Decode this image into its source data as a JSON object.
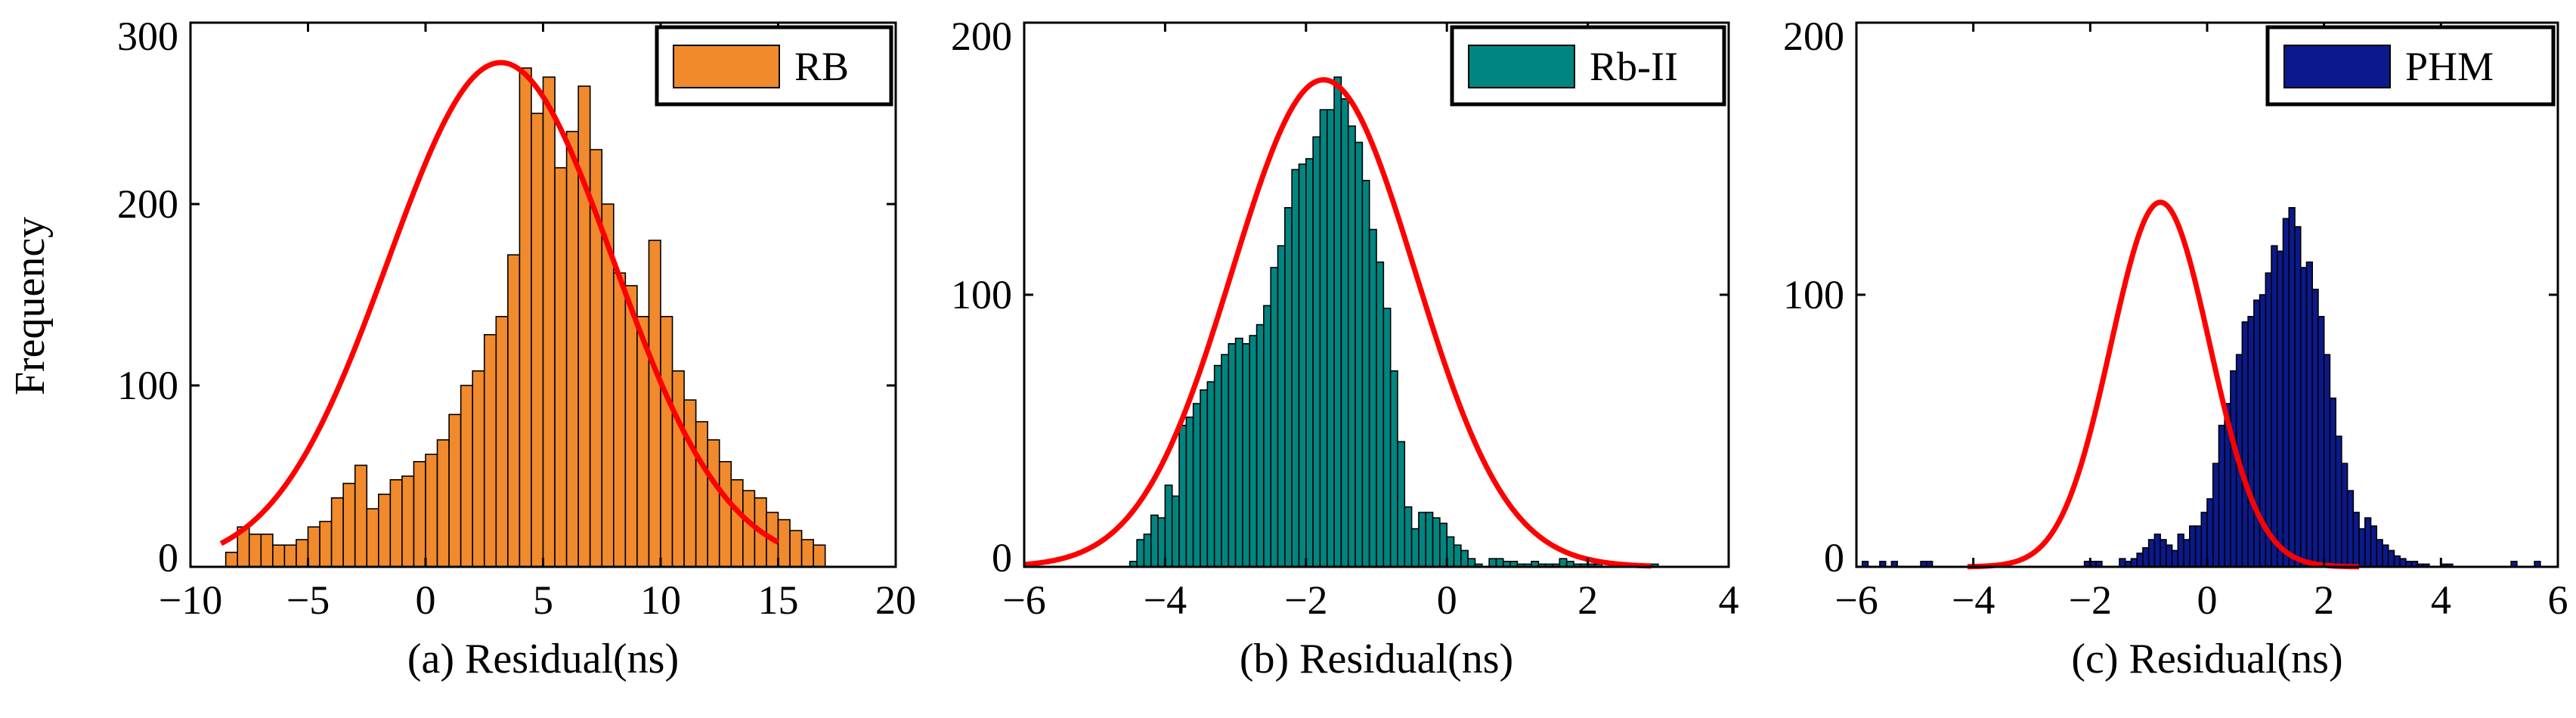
{
  "figure": {
    "ylabel": "Frequency"
  },
  "chart_data": [
    {
      "type": "bar",
      "subtype": "histogram-with-normal-fit",
      "xlabel": "(a) Residual(ns)",
      "ylabel": "Frequency",
      "legend": "RB",
      "legend_position": "top-right",
      "bar_color": "#F08A2D",
      "fit_color": "#FF0000",
      "xlim": [
        -10,
        20
      ],
      "ylim": [
        0,
        300
      ],
      "xticks": [
        -10,
        -5,
        0,
        5,
        10,
        15,
        20
      ],
      "xtick_labels": [
        "−10",
        "−5",
        "0",
        "5",
        "10",
        "15",
        "20"
      ],
      "yticks": [
        0,
        100,
        200,
        300
      ],
      "ytick_labels": [
        "0",
        "100",
        "200",
        "300"
      ],
      "bin_start": -8.5,
      "bin_width": 0.5,
      "values": [
        8,
        22,
        18,
        18,
        12,
        12,
        15,
        22,
        25,
        38,
        46,
        56,
        32,
        40,
        48,
        50,
        58,
        62,
        70,
        84,
        100,
        108,
        128,
        138,
        172,
        275,
        250,
        270,
        220,
        240,
        265,
        230,
        200,
        162,
        155,
        138,
        180,
        138,
        108,
        92,
        80,
        70,
        58,
        48,
        42,
        38,
        30,
        26,
        20,
        15,
        12
      ],
      "fit": {
        "mean": 3.2,
        "sd": 4.8,
        "peak": 278,
        "range": [
          -8.7,
          15.0
        ]
      }
    },
    {
      "type": "bar",
      "subtype": "histogram-with-normal-fit",
      "xlabel": "(b) Residual(ns)",
      "ylabel": "",
      "legend": "Rb-II",
      "legend_position": "top-right",
      "bar_color": "#008580",
      "fit_color": "#FF0000",
      "xlim": [
        -6,
        4
      ],
      "ylim": [
        0,
        200
      ],
      "xticks": [
        -6,
        -4,
        -2,
        0,
        2,
        4
      ],
      "xtick_labels": [
        "−6",
        "−4",
        "−2",
        "0",
        "2",
        "4"
      ],
      "yticks": [
        0,
        100,
        200
      ],
      "ytick_labels": [
        "0",
        "100",
        "200"
      ],
      "bin_start": -4.5,
      "bin_width": 0.1,
      "values": [
        2,
        10,
        12,
        19,
        18,
        30,
        26,
        52,
        55,
        60,
        65,
        68,
        74,
        78,
        82,
        84,
        82,
        85,
        89,
        96,
        110,
        118,
        132,
        146,
        148,
        150,
        158,
        168,
        168,
        180,
        172,
        162,
        156,
        142,
        124,
        112,
        95,
        72,
        46,
        22,
        14,
        20,
        20,
        18,
        16,
        11,
        8,
        6,
        3,
        1,
        0,
        3,
        3,
        2,
        2,
        1,
        1,
        2,
        1,
        1,
        1,
        3,
        2,
        1,
        1,
        1,
        1,
        0,
        0,
        0,
        0,
        0,
        0,
        1,
        1
      ],
      "fit": {
        "mean": -1.75,
        "sd": 1.3,
        "peak": 179,
        "range": [
          -6.0,
          2.9
        ]
      }
    },
    {
      "type": "bar",
      "subtype": "histogram-with-normal-fit",
      "xlabel": "(c) Residual(ns)",
      "ylabel": "",
      "legend": "PHM",
      "legend_position": "top-right",
      "bar_color": "#0A1A8C",
      "fit_color": "#FF0000",
      "xlim": [
        -6,
        6
      ],
      "ylim": [
        0,
        200
      ],
      "xticks": [
        -6,
        -4,
        -2,
        0,
        2,
        4,
        6
      ],
      "xtick_labels": [
        "−6",
        "−4",
        "−2",
        "0",
        "2",
        "4",
        "6"
      ],
      "yticks": [
        0,
        100,
        200
      ],
      "ytick_labels": [
        "0",
        "100",
        "200"
      ],
      "bin_start": -6.0,
      "bin_width": 0.1,
      "values": [
        0,
        2,
        0,
        0,
        2,
        0,
        2,
        0,
        0,
        0,
        0,
        2,
        2,
        0,
        0,
        0,
        0,
        0,
        0,
        0,
        0,
        0,
        0,
        0,
        0,
        0,
        0,
        0,
        0,
        0,
        0,
        0,
        0,
        0,
        0,
        0,
        0,
        0,
        0,
        2,
        2,
        2,
        0,
        0,
        0,
        3,
        2,
        3,
        5,
        7,
        10,
        12,
        10,
        8,
        6,
        12,
        10,
        15,
        15,
        20,
        25,
        38,
        52,
        60,
        72,
        78,
        90,
        92,
        98,
        100,
        108,
        118,
        116,
        128,
        132,
        125,
        110,
        112,
        102,
        92,
        78,
        62,
        48,
        38,
        28,
        20,
        14,
        18,
        15,
        10,
        8,
        6,
        4,
        3,
        2,
        2,
        1,
        1,
        0,
        0,
        1,
        1,
        0,
        0,
        0,
        0,
        0,
        0,
        0,
        0,
        0,
        0,
        2,
        0,
        0,
        0,
        2,
        0,
        0,
        0
      ],
      "fit": {
        "mean": -0.8,
        "sd": 0.85,
        "peak": 134,
        "range": [
          -4.1,
          2.6
        ]
      }
    }
  ]
}
